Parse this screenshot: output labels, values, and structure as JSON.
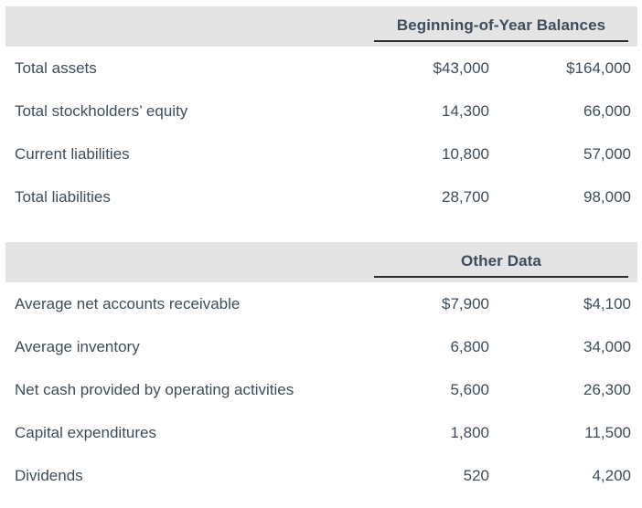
{
  "page": {
    "background": "#ffffff",
    "text_color": "#3d4d5b",
    "band_color": "#e4e4e4",
    "rule_color": "#2a2e33"
  },
  "sections": [
    {
      "header": "Beginning-of-Year Balances",
      "rows": [
        {
          "label": "Total assets",
          "col1": "$43,000",
          "col2": "$164,000"
        },
        {
          "label": "Total stockholders’ equity",
          "col1": "14,300",
          "col2": "66,000"
        },
        {
          "label": "Current liabilities",
          "col1": "10,800",
          "col2": "57,000"
        },
        {
          "label": "Total liabilities",
          "col1": "28,700",
          "col2": "98,000"
        }
      ]
    },
    {
      "header": "Other Data",
      "rows": [
        {
          "label": "Average net accounts receivable",
          "col1": "$7,900",
          "col2": "$4,100"
        },
        {
          "label": "Average inventory",
          "col1": "6,800",
          "col2": "34,000"
        },
        {
          "label": "Net cash provided by operating activities",
          "col1": "5,600",
          "col2": "26,300"
        },
        {
          "label": "Capital expenditures",
          "col1": "1,800",
          "col2": "11,500"
        },
        {
          "label": "Dividends",
          "col1": "520",
          "col2": "4,200"
        }
      ]
    }
  ]
}
